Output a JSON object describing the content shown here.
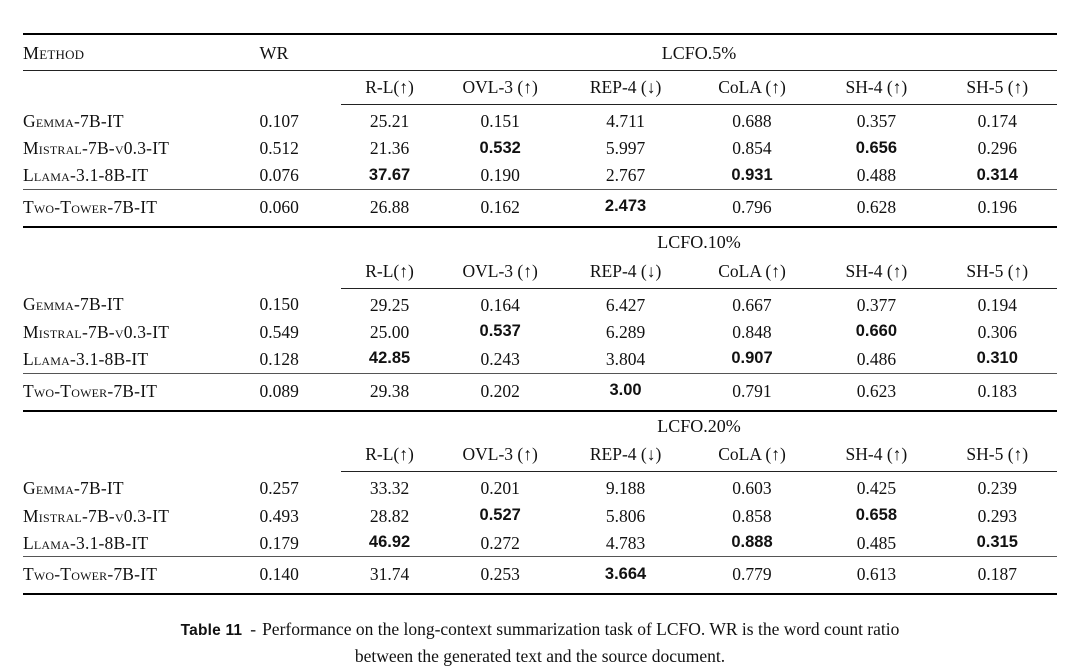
{
  "table": {
    "method_header": "Method",
    "wr_header": "WR",
    "metric_headers": [
      "R-L(↑)",
      "OVL-3 (↑)",
      "REP-4 (↓)",
      "CoLA (↑)",
      "SH-4 (↑)",
      "SH-5 (↑)"
    ],
    "sections": [
      {
        "group_label": "LCFO.5%",
        "rows": [
          {
            "method": "Gemma-7B-IT",
            "wr": "0.107",
            "values": [
              "25.21",
              "0.151",
              "4.711",
              "0.688",
              "0.357",
              "0.174"
            ],
            "bold": []
          },
          {
            "method": "Mistral-7B-v0.3-IT",
            "wr": "0.512",
            "values": [
              "21.36",
              "0.532",
              "5.997",
              "0.854",
              "0.656",
              "0.296"
            ],
            "bold": [
              1,
              4
            ]
          },
          {
            "method": "Llama-3.1-8B-IT",
            "wr": "0.076",
            "values": [
              "37.67",
              "0.190",
              "2.767",
              "0.931",
              "0.488",
              "0.314"
            ],
            "bold": [
              0,
              3,
              5
            ]
          }
        ],
        "final_row": {
          "method": "Two-Tower-7B-IT",
          "wr": "0.060",
          "values": [
            "26.88",
            "0.162",
            "2.473",
            "0.796",
            "0.628",
            "0.196"
          ],
          "bold": [
            2
          ]
        }
      },
      {
        "group_label": "LCFO.10%",
        "rows": [
          {
            "method": "Gemma-7B-IT",
            "wr": "0.150",
            "values": [
              "29.25",
              "0.164",
              "6.427",
              "0.667",
              "0.377",
              "0.194"
            ],
            "bold": []
          },
          {
            "method": "Mistral-7B-v0.3-IT",
            "wr": "0.549",
            "values": [
              "25.00",
              "0.537",
              "6.289",
              "0.848",
              "0.660",
              "0.306"
            ],
            "bold": [
              1,
              4
            ]
          },
          {
            "method": "Llama-3.1-8B-IT",
            "wr": "0.128",
            "values": [
              "42.85",
              "0.243",
              "3.804",
              "0.907",
              "0.486",
              "0.310"
            ],
            "bold": [
              0,
              3,
              5
            ]
          }
        ],
        "final_row": {
          "method": "Two-Tower-7B-IT",
          "wr": "0.089",
          "values": [
            "29.38",
            "0.202",
            "3.00",
            "0.791",
            "0.623",
            "0.183"
          ],
          "bold": [
            2
          ]
        }
      },
      {
        "group_label": "LCFO.20%",
        "rows": [
          {
            "method": "Gemma-7B-IT",
            "wr": "0.257",
            "values": [
              "33.32",
              "0.201",
              "9.188",
              "0.603",
              "0.425",
              "0.239"
            ],
            "bold": []
          },
          {
            "method": "Mistral-7B-v0.3-IT",
            "wr": "0.493",
            "values": [
              "28.82",
              "0.527",
              "5.806",
              "0.858",
              "0.658",
              "0.293"
            ],
            "bold": [
              1,
              4
            ]
          },
          {
            "method": "Llama-3.1-8B-IT",
            "wr": "0.179",
            "values": [
              "46.92",
              "0.272",
              "4.783",
              "0.888",
              "0.485",
              "0.315"
            ],
            "bold": [
              0,
              3,
              5
            ]
          }
        ],
        "final_row": {
          "method": "Two-Tower-7B-IT",
          "wr": "0.140",
          "values": [
            "31.74",
            "0.253",
            "3.664",
            "0.779",
            "0.613",
            "0.187"
          ],
          "bold": [
            2
          ]
        }
      }
    ]
  },
  "caption": {
    "prefix": "Table 11",
    "separator": "-",
    "line1": "Performance on the long-context summarization task of LCFO. WR is the word count ratio",
    "line2": "between the generated text and the source document."
  }
}
